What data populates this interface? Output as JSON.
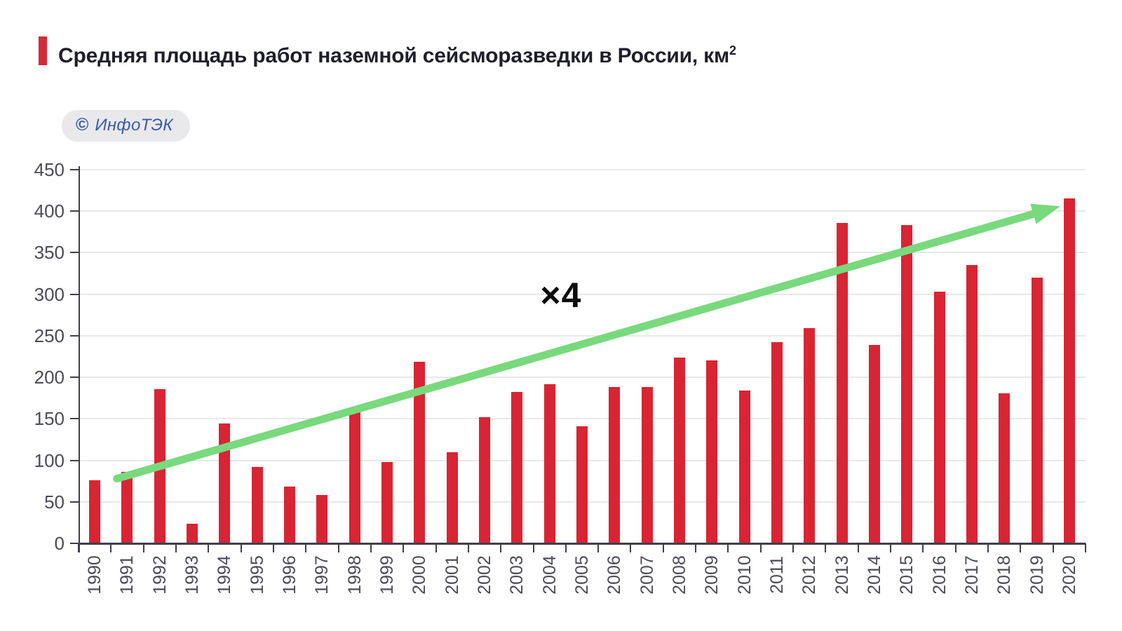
{
  "header": {
    "title_main": "Средняя площадь работ наземной сейсморазведки в России, км",
    "title_superscript": "2",
    "accent_color": "#d62a3a",
    "title_color": "#1f1f2a"
  },
  "badge": {
    "copyright_symbol": "©",
    "label": "ИнфоТЭК",
    "text_color": "#3b5aa6",
    "background_color": "#e9e9ec"
  },
  "chart_data": {
    "type": "bar",
    "title": "Средняя площадь работ наземной сейсморазведки в России, км2",
    "categories": [
      "1990",
      "1991",
      "1992",
      "1993",
      "1994",
      "1995",
      "1996",
      "1997",
      "1998",
      "1999",
      "2000",
      "2001",
      "2002",
      "2003",
      "2004",
      "2005",
      "2006",
      "2007",
      "2008",
      "2009",
      "2010",
      "2011",
      "2012",
      "2013",
      "2014",
      "2015",
      "2016",
      "2017",
      "2018",
      "2019",
      "2020"
    ],
    "values": [
      76,
      86,
      186,
      24,
      144,
      92,
      68,
      58,
      158,
      98,
      219,
      110,
      152,
      182,
      192,
      141,
      188,
      188,
      224,
      220,
      184,
      242,
      259,
      386,
      239,
      383,
      303,
      335,
      181,
      320,
      415
    ],
    "xlabel": "",
    "ylabel": "",
    "ylim": [
      0,
      450
    ],
    "yticks": [
      0,
      50,
      100,
      150,
      200,
      250,
      300,
      350,
      400,
      450
    ],
    "grid": "horizontal",
    "legend": "none",
    "bar_color": "#d92433",
    "grid_color": "#e8e8e8",
    "axis_color": "#40404a",
    "tick_label_color": "#4b4b55",
    "annotations": {
      "trend_arrow": {
        "color": "#79d97d",
        "start": {
          "category_index": 0.68,
          "value": 78
        },
        "end": {
          "category_index": 29.72,
          "value": 406
        }
      },
      "multiplier_label": {
        "text": "×4",
        "position": {
          "category_index": 14.35,
          "value": 299
        }
      }
    }
  }
}
